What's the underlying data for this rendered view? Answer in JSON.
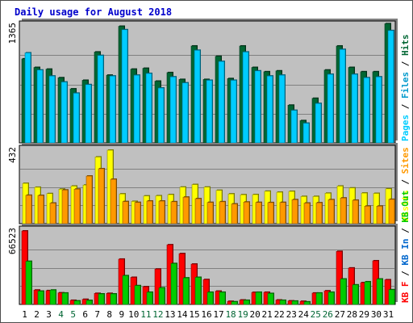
{
  "chart_data": {
    "type": "bar",
    "title": "Daily usage for August 2018",
    "categories": [
      "1",
      "2",
      "3",
      "4",
      "5",
      "6",
      "7",
      "8",
      "9",
      "10",
      "11",
      "12",
      "13",
      "14",
      "15",
      "16",
      "17",
      "18",
      "19",
      "20",
      "21",
      "22",
      "23",
      "24",
      "25",
      "26",
      "27",
      "28",
      "29",
      "30",
      "31"
    ],
    "weekend_days": [
      "4",
      "5",
      "11",
      "12",
      "18",
      "19",
      "25",
      "26"
    ],
    "grid": true,
    "colors": {
      "title": "#0000cc",
      "weekday_label": "#000000",
      "weekend_label": "#006633",
      "pages": "#00ccff",
      "files": "#0099cc",
      "hits": "#006633",
      "visits": "#ffff00",
      "sites": "#ff9900",
      "kb_f": "#ff0000",
      "kb_in": "#0066cc",
      "kb_out": "#00cc00",
      "sep": "#000000",
      "panel_bg": "#c0c0c0"
    },
    "panels": [
      {
        "name": "hits-panel",
        "max_label": "1365",
        "ylim": [
          0,
          1365
        ],
        "legend": [
          {
            "text": "Pages",
            "color": "#00ccff"
          },
          {
            "text": " / ",
            "color": "#000000"
          },
          {
            "text": "Files",
            "color": "#0099cc"
          },
          {
            "text": " / ",
            "color": "#000000"
          },
          {
            "text": "Hits",
            "color": "#006633"
          }
        ],
        "series": [
          {
            "name": "Hits",
            "color": "#006633",
            "values": [
              980,
              880,
              860,
              760,
              630,
              730,
              1060,
              790,
              1360,
              860,
              870,
              720,
              820,
              740,
              1130,
              740,
              1010,
              750,
              1130,
              880,
              830,
              840,
              440,
              260,
              520,
              850,
              1130,
              880,
              830,
              830,
              1390
            ]
          },
          {
            "name": "Files",
            "color": "#00ccff",
            "values": [
              1050,
              850,
              780,
              710,
              580,
              680,
              1020,
              780,
              1320,
              790,
              810,
              640,
              770,
              700,
              1080,
              730,
              950,
              730,
              1060,
              840,
              780,
              790,
              380,
              230,
              460,
              800,
              1090,
              800,
              760,
              770,
              1310
            ]
          },
          {
            "name": "Pages",
            "color": "#0099cc",
            "values": [
              0,
              0,
              0,
              0,
              0,
              0,
              0,
              0,
              0,
              0,
              0,
              0,
              0,
              0,
              0,
              0,
              0,
              0,
              0,
              0,
              0,
              0,
              0,
              0,
              0,
              0,
              0,
              0,
              0,
              0,
              0
            ]
          }
        ]
      },
      {
        "name": "visits-panel",
        "max_label": "432",
        "ylim": [
          0,
          432
        ],
        "legend": [
          {
            "text": "Visits",
            "color": "#ffff00"
          },
          {
            "text": " / ",
            "color": "#000000"
          },
          {
            "text": "Sites",
            "color": "#ff9900"
          }
        ],
        "series": [
          {
            "name": "Visits",
            "color": "#ffff00",
            "values": [
              237,
              214,
              177,
              203,
              221,
              227,
              392,
              432,
              175,
              131,
              163,
              164,
              171,
              215,
              230,
              215,
              196,
              175,
              170,
              171,
              191,
              185,
              190,
              160,
              160,
              179,
              221,
              210,
              180,
              178,
              205
            ]
          },
          {
            "name": "Sites",
            "color": "#ff9900",
            "values": [
              167,
              166,
              121,
              198,
              203,
              280,
              323,
              261,
              130,
              125,
              133,
              133,
              129,
              156,
              147,
              125,
              129,
              116,
              127,
              125,
              124,
              125,
              141,
              121,
              123,
              141,
              151,
              138,
              103,
              103,
              143
            ]
          }
        ]
      },
      {
        "name": "kb-panel",
        "max_label": "66523",
        "ylim": [
          0,
          66523
        ],
        "legend": [
          {
            "text": "KB F",
            "color": "#ff0000"
          },
          {
            "text": " / ",
            "color": "#000000"
          },
          {
            "text": "KB In",
            "color": "#0066cc"
          },
          {
            "text": " / ",
            "color": "#000000"
          },
          {
            "text": "KB Out",
            "color": "#00cc00"
          }
        ],
        "series": [
          {
            "name": "KB F",
            "color": "#ff0000",
            "values": [
              66500,
              13000,
              12500,
              10500,
              3700,
              4600,
              10000,
              10000,
              41000,
              24500,
              16000,
              32000,
              54000,
              46000,
              36500,
              22500,
              12000,
              2800,
              4000,
              10900,
              11000,
              4000,
              3200,
              2800,
              10300,
              12300,
              48000,
              33000,
              19700,
              39500,
              22300
            ]
          },
          {
            "name": "KB In",
            "color": "#0066cc",
            "values": [
              0,
              0,
              0,
              0,
              0,
              0,
              0,
              0,
              0,
              0,
              0,
              0,
              0,
              0,
              0,
              0,
              0,
              0,
              0,
              0,
              0,
              0,
              0,
              0,
              0,
              0,
              0,
              0,
              0,
              0,
              0
            ]
          },
          {
            "name": "KB Out",
            "color": "#00cc00",
            "values": [
              39000,
              12000,
              13000,
              10300,
              3200,
              3600,
              9500,
              9500,
              26000,
              17000,
              11000,
              15000,
              37000,
              24000,
              24500,
              11000,
              11000,
              2400,
              3700,
              11000,
              9900,
              3700,
              3000,
              2300,
              10300,
              11000,
              23000,
              17700,
              20500,
              23000,
              13300
            ]
          }
        ]
      }
    ]
  }
}
